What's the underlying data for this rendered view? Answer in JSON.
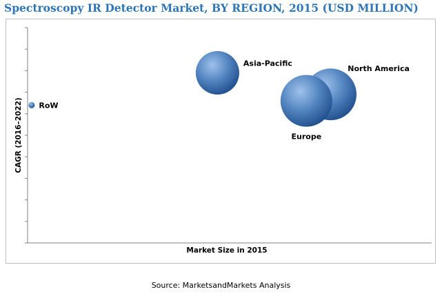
{
  "title": "Spectroscopy IR Detector Market, BY REGION, 2015 (USD MILLION)",
  "source": "Source: MarketsandMarkets Analysis",
  "colors": {
    "title": "#2e75b6",
    "bubble_light": "#9ec2ec",
    "bubble_mid": "#4f81bd",
    "bubble_dark": "#1f4e8c",
    "axis": "#808080"
  },
  "chart_data": {
    "type": "scatter",
    "variant": "bubble",
    "title": "Spectroscopy IR Detector Market, BY REGION, 2015 (USD MILLION)",
    "xlabel": "Market Size in 2015",
    "ylabel": "CAGR (2016–2022)",
    "xlim": [
      0,
      100
    ],
    "ylim": [
      0,
      100
    ],
    "axis_values_shown": false,
    "grid": false,
    "legend": "none",
    "series": [
      {
        "points": [
          {
            "label": "RoW",
            "x": 1,
            "y": 64,
            "size": 1.5
          },
          {
            "label": "Asia-Pacific",
            "x": 47,
            "y": 79,
            "size": 10.5
          },
          {
            "label": "North America",
            "x": 75,
            "y": 69,
            "size": 12.5
          },
          {
            "label": "Europe",
            "x": 69,
            "y": 66,
            "size": 12.5
          }
        ]
      }
    ]
  }
}
